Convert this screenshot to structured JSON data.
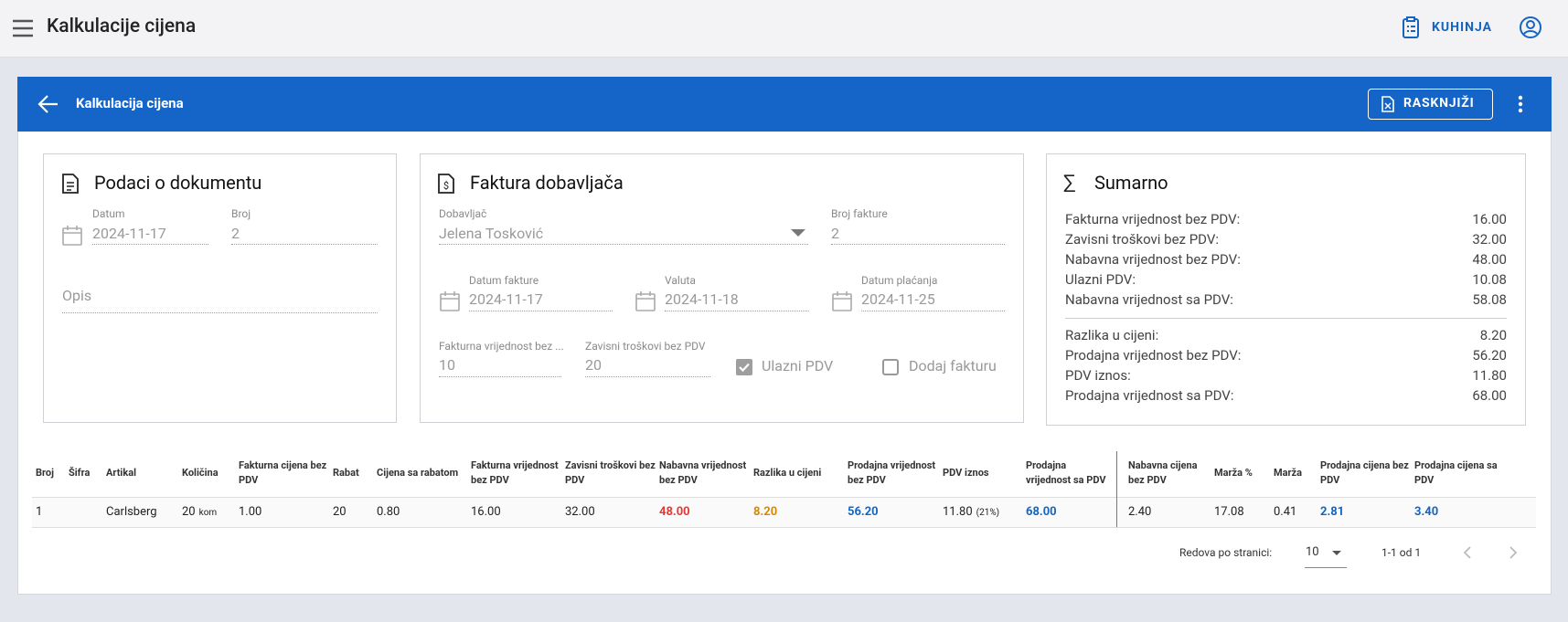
{
  "header": {
    "title": "Kalkulacije cijena",
    "kitchen": "KUHINJA"
  },
  "toolbar": {
    "title": "Kalkulacija cijena",
    "action": "RASKNJIŽI"
  },
  "document": {
    "title": "Podaci o dokumentu",
    "date": {
      "label": "Datum",
      "value": "2024-11-17"
    },
    "number": {
      "label": "Broj",
      "value": "2"
    },
    "description": "Opis"
  },
  "invoice": {
    "title": "Faktura dobavljača",
    "supplier": {
      "label": "Dobavljač",
      "value": "Jelena Tosković"
    },
    "number": {
      "label": "Broj fakture",
      "value": "2"
    },
    "invoice_date": {
      "label": "Datum fakture",
      "value": "2024-11-17"
    },
    "currency_date": {
      "label": "Valuta",
      "value": "2024-11-18"
    },
    "payment_date": {
      "label": "Datum plaćanja",
      "value": "2024-11-25"
    },
    "invoice_value": {
      "label": "Fakturna vrijednost bez ...",
      "value": "10"
    },
    "dependent_costs": {
      "label": "Zavisni troškovi bez PDV",
      "value": "20"
    },
    "input_vat": "Ulazni PDV",
    "add_invoice": "Dodaj fakturu"
  },
  "summary": {
    "title": "Sumarno",
    "rows": [
      [
        "Fakturna vrijednost bez PDV:",
        "16.00"
      ],
      [
        "Zavisni troškovi bez PDV:",
        "32.00"
      ],
      [
        "Nabavna vrijednost bez PDV:",
        "48.00"
      ],
      [
        "Ulazni PDV:",
        "10.08"
      ],
      [
        "Nabavna vrijednost sa PDV:",
        "58.08"
      ]
    ],
    "rows2": [
      [
        "Razlika u cijeni:",
        "8.20"
      ],
      [
        "Prodajna vrijednost bez PDV:",
        "56.20"
      ],
      [
        "PDV iznos:",
        "11.80"
      ],
      [
        "Prodajna vrijednost sa PDV:",
        "68.00"
      ]
    ]
  },
  "table": {
    "headers": [
      "Broj",
      "Šifra",
      "Artikal",
      "Količina",
      "Fakturna cijena bez PDV",
      "Rabat",
      "Cijena sa rabatom",
      "Fakturna vrijednost bez PDV",
      "Zavisni troškovi bez PDV",
      "Nabavna vrijednost bez PDV",
      "Razlika u cijeni",
      "Prodajna vrijednost bez PDV",
      "PDV iznos",
      "Prodajna vrijednost sa PDV",
      "Nabavna cijena bez PDV",
      "Marža %",
      "Marža",
      "Prodajna cijena bez PDV",
      "Prodajna cijena sa PDV"
    ],
    "rows": [
      [
        "1",
        "",
        "Carlsberg",
        {
          "value": "20",
          "unit": "kom"
        },
        "1.00",
        "20",
        "0.80",
        "16.00",
        "32.00",
        "48.00",
        "8.20",
        "56.20",
        {
          "value": "11.80",
          "rate": "(21%)"
        },
        "68.00",
        "2.40",
        "17.08",
        "0.41",
        "2.81",
        "3.40"
      ]
    ]
  },
  "pagination": {
    "rows_per_page_label": "Redova po stranici:",
    "rows_per_page": "10",
    "range": "1-1 od 1"
  }
}
